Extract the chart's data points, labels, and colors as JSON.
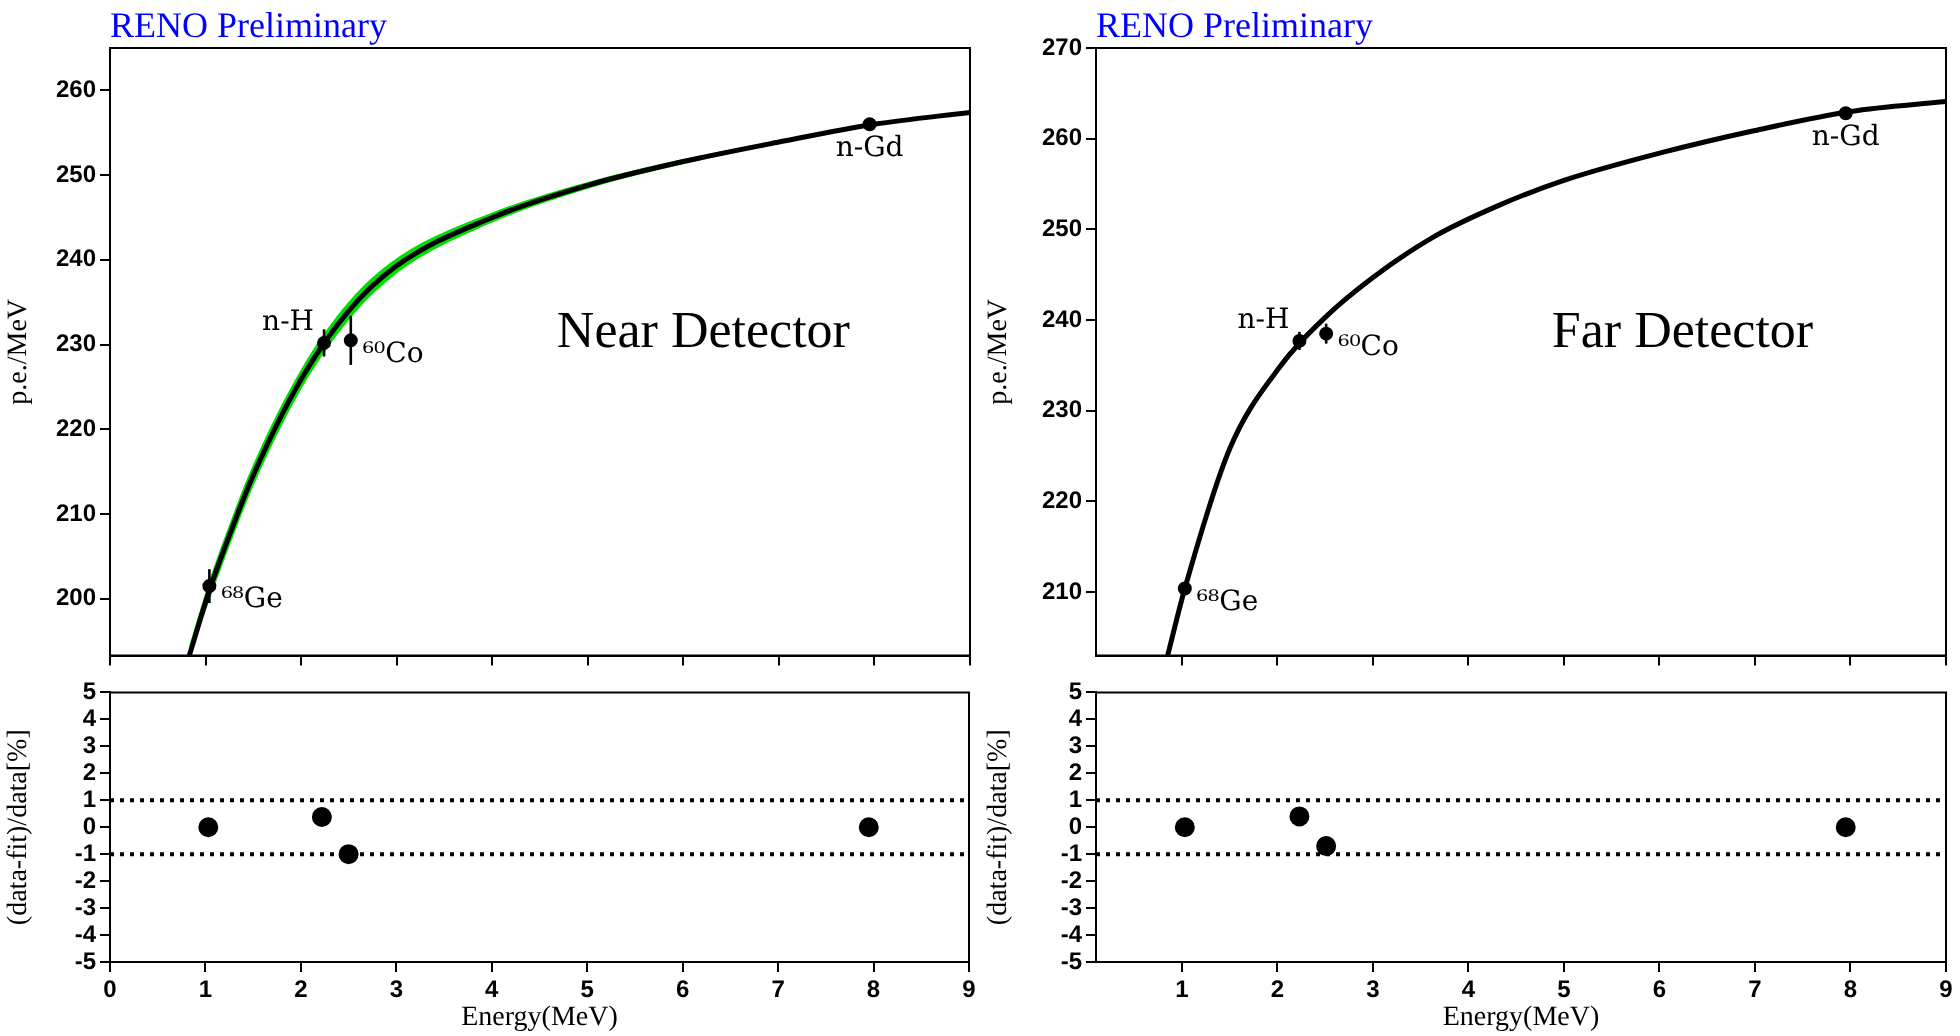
{
  "chart_data": [
    {
      "type": "scatter",
      "title": "RENO Preliminary",
      "ylabel": "p.e./MeV",
      "xlim": [
        0,
        9
      ],
      "xticks": [
        0,
        1,
        2,
        3,
        4,
        5,
        6,
        7,
        8,
        9
      ],
      "ylim": [
        193.3,
        265
      ],
      "yticks": [
        200,
        210,
        220,
        230,
        240,
        250,
        260
      ],
      "tick_labels": "y",
      "grid": false,
      "legend": false,
      "annotations": [
        "Near Detector",
        {
          "text": "⁶⁸Ge",
          "x": 1.04,
          "y": 201.5
        },
        {
          "text": "n-H",
          "x": 2.24,
          "y": 230.2
        },
        {
          "text": "⁶⁰Co",
          "x": 2.52,
          "y": 230.5
        },
        {
          "text": "n-Gd",
          "x": 7.95,
          "y": 256
        }
      ],
      "series": [
        {
          "type": "line",
          "color": "#000000",
          "x": [
            0.83,
            1.04,
            1.2,
            1.5,
            2,
            2.5,
            3,
            4,
            5,
            6,
            7,
            8,
            9
          ],
          "values": [
            193.3,
            201,
            206,
            214.6,
            225.9,
            234,
            239.3,
            245,
            248.8,
            251.6,
            253.9,
            256,
            257.4
          ],
          "lower": [
            193.3,
            199.8,
            204.7,
            213.3,
            224.7,
            232.9,
            238.4,
            244.4,
            248.4,
            251.3,
            253.7,
            255.9,
            257.3
          ],
          "upper": [
            194.5,
            202.2,
            207.3,
            215.9,
            227.1,
            235.1,
            240.2,
            245.6,
            249.2,
            251.9,
            254.1,
            256.1,
            257.5
          ]
        },
        {
          "type": "scatter",
          "marker": "circle",
          "color": "#000000",
          "x": [
            1.04,
            2.24,
            2.52,
            7.95
          ],
          "values": [
            201.5,
            230.2,
            230.5,
            256
          ],
          "errors": [
            2,
            1.6,
            2.9,
            0.3
          ]
        }
      ]
    },
    {
      "type": "scatter",
      "title": "RENO Preliminary",
      "ylabel": "p.e./MeV",
      "xlim": [
        0.1,
        9
      ],
      "xticks": [
        1,
        2,
        3,
        4,
        5,
        6,
        7,
        8,
        9
      ],
      "ylim": [
        203,
        270
      ],
      "yticks": [
        210,
        220,
        230,
        240,
        250,
        260,
        270
      ],
      "tick_labels": "y",
      "grid": false,
      "legend": false,
      "annotations": [
        "Far Detector",
        {
          "text": "⁶⁸Ge",
          "x": 1.03,
          "y": 210.4
        },
        {
          "text": "n-H",
          "x": 2.23,
          "y": 237.7
        },
        {
          "text": "⁶⁰Co",
          "x": 2.51,
          "y": 238.5
        },
        {
          "text": "n-Gd",
          "x": 7.95,
          "y": 262.8
        }
      ],
      "series": [
        {
          "type": "line",
          "color": "#000000",
          "x": [
            0.85,
            1.03,
            1.5,
            2,
            2.5,
            3,
            3.64,
            4.33,
            5,
            6,
            7,
            8,
            9
          ],
          "values": [
            203,
            210.4,
            225.8,
            234.5,
            240.3,
            244.7,
            249.2,
            252.7,
            255.4,
            258.4,
            260.9,
            263,
            264.1
          ],
          "lower": [
            203,
            210,
            225.4,
            234.1,
            240,
            244.4,
            249,
            252.5,
            255.3,
            258.3,
            260.8,
            262.9,
            264
          ],
          "upper": [
            203.4,
            210.8,
            226.2,
            234.9,
            240.6,
            245,
            249.4,
            252.9,
            255.5,
            258.5,
            261,
            263.1,
            264.2
          ]
        },
        {
          "type": "scatter",
          "marker": "circle",
          "color": "#000000",
          "x": [
            1.03,
            2.23,
            2.51,
            7.95
          ],
          "values": [
            210.4,
            237.7,
            238.5,
            262.8
          ],
          "errors": [
            0.5,
            1,
            1.1,
            0.3
          ]
        }
      ]
    },
    {
      "type": "scatter",
      "xlabel": "Energy(MeV)",
      "ylabel": "(data-fit)/data[%]",
      "xlim": [
        0,
        9
      ],
      "xticks": [
        0,
        1,
        2,
        3,
        4,
        5,
        6,
        7,
        8,
        9
      ],
      "ylim": [
        -5,
        5
      ],
      "yticks": [
        -5,
        -4,
        -3,
        -2,
        -1,
        0,
        1,
        2,
        3,
        4,
        5
      ],
      "marker": "circle",
      "grid": false,
      "legend": false,
      "line_style": "dotted",
      "ref_lines": [
        {
          "axis": "y",
          "value": 1
        },
        {
          "axis": "y",
          "value": -1
        }
      ],
      "series": [
        {
          "color": "#000000",
          "x": [
            1.03,
            2.22,
            2.5,
            7.95
          ],
          "values": [
            0,
            0.38,
            -1,
            0
          ]
        }
      ]
    },
    {
      "type": "scatter",
      "xlabel": "Energy(MeV)",
      "ylabel": "(data-fit)/data[%]",
      "xlim": [
        0.1,
        9
      ],
      "xticks": [
        1,
        2,
        3,
        4,
        5,
        6,
        7,
        8,
        9
      ],
      "ylim": [
        -5,
        5
      ],
      "yticks": [
        -5,
        -4,
        -3,
        -2,
        -1,
        0,
        1,
        2,
        3,
        4,
        5
      ],
      "marker": "circle",
      "grid": false,
      "legend": false,
      "line_style": "dotted",
      "ref_lines": [
        {
          "axis": "y",
          "value": 1
        },
        {
          "axis": "y",
          "value": -1
        }
      ],
      "series": [
        {
          "color": "#000000",
          "x": [
            1.03,
            2.23,
            2.51,
            7.95
          ],
          "values": [
            0,
            0.4,
            -0.7,
            0
          ]
        }
      ]
    }
  ]
}
